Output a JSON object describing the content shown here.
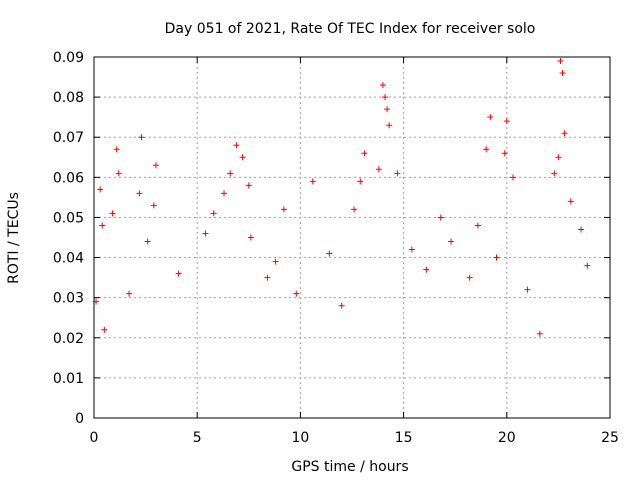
{
  "chart_data": {
    "type": "scatter",
    "title": "Day 051 of 2021, Rate Of TEC Index for receiver solo",
    "xlabel": "GPS time / hours",
    "ylabel": "ROTI / TECUs",
    "xlim": [
      0,
      25
    ],
    "ylim": [
      0,
      0.09
    ],
    "x_ticks": [
      "0",
      "5",
      "10",
      "15",
      "20",
      "25"
    ],
    "y_ticks": [
      "0",
      "0.01",
      "0.02",
      "0.03",
      "0.04",
      "0.05",
      "0.06",
      "0.07",
      "0.08",
      "0.09"
    ],
    "grid": true,
    "marker": "plus",
    "color": "#ff0000",
    "series": [
      {
        "x": [
          0.1,
          0.3,
          0.4,
          0.5,
          0.9,
          1.1,
          1.2,
          1.7,
          2.2,
          2.3,
          2.6,
          2.9,
          3.0,
          4.1,
          5.4,
          5.8,
          6.3,
          6.6,
          6.9,
          7.2,
          7.5,
          7.6,
          8.4,
          8.8,
          9.2,
          9.8,
          10.6,
          11.4,
          12.0,
          12.6,
          12.9,
          13.1,
          13.8,
          14.0,
          14.1,
          14.2,
          14.3,
          14.7,
          15.4,
          16.1,
          16.8,
          17.3,
          18.2,
          18.6,
          19.0,
          19.2,
          19.5,
          19.9,
          20.0,
          20.3,
          21.0,
          21.6,
          22.3,
          22.5,
          22.6,
          22.7,
          22.8,
          23.1,
          23.6,
          23.9
        ],
        "y": [
          0.029,
          0.057,
          0.048,
          0.022,
          0.051,
          0.067,
          0.061,
          0.031,
          0.056,
          0.07,
          0.044,
          0.053,
          0.063,
          0.036,
          0.046,
          0.051,
          0.056,
          0.061,
          0.068,
          0.065,
          0.058,
          0.045,
          0.035,
          0.039,
          0.052,
          0.031,
          0.059,
          0.041,
          0.028,
          0.052,
          0.059,
          0.066,
          0.062,
          0.083,
          0.08,
          0.077,
          0.073,
          0.061,
          0.042,
          0.037,
          0.05,
          0.044,
          0.035,
          0.048,
          0.067,
          0.075,
          0.04,
          0.066,
          0.074,
          0.06,
          0.032,
          0.021,
          0.061,
          0.065,
          0.089,
          0.086,
          0.071,
          0.054,
          0.047,
          0.038
        ]
      }
    ]
  }
}
